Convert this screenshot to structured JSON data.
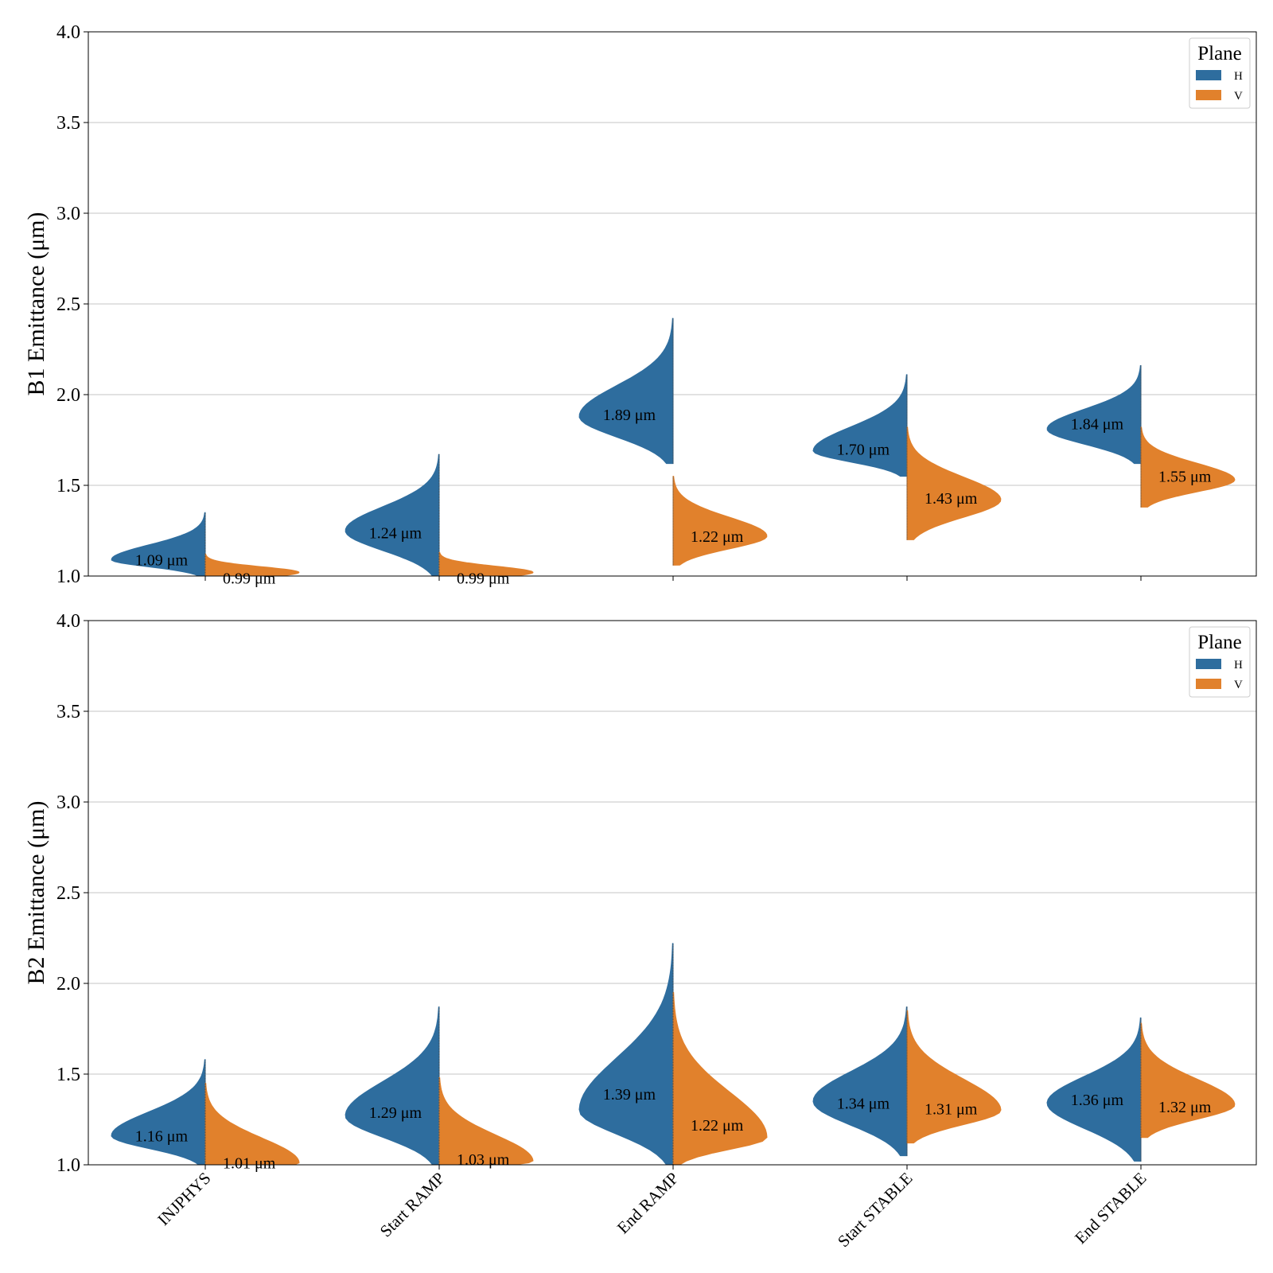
{
  "chart_data": [
    {
      "type": "violin",
      "ylabel": "B1 Emittance (μm)",
      "ylim": [
        1.0,
        4.0
      ],
      "yticks": [
        "1.0",
        "1.5",
        "2.0",
        "2.5",
        "3.0",
        "3.5",
        "4.0"
      ],
      "grid": "horizontal",
      "legend": {
        "title": "Plane",
        "placement": "top-right",
        "entries": [
          "H",
          "V"
        ]
      },
      "categories": [
        "INJPHYS",
        "Start RAMP",
        "End RAMP",
        "Start STABLE",
        "End STABLE"
      ],
      "series": [
        {
          "name": "H",
          "color": "#2e6d9e",
          "annotations": [
            "1.09 μm",
            "1.24 μm",
            "1.89 μm",
            "1.70 μm",
            "1.84 μm"
          ],
          "median": [
            1.09,
            1.24,
            1.89,
            1.7,
            1.84
          ],
          "min": [
            1.0,
            1.0,
            1.62,
            1.55,
            1.62
          ],
          "max": [
            1.35,
            1.67,
            2.42,
            2.11,
            2.16
          ],
          "peak": [
            1.09,
            1.25,
            1.88,
            1.69,
            1.81
          ]
        },
        {
          "name": "V",
          "color": "#e1812c",
          "annotations": [
            "0.99 μm",
            "0.99 μm",
            "1.22 μm",
            "1.43 μm",
            "1.55 μm"
          ],
          "median": [
            0.99,
            0.99,
            1.22,
            1.43,
            1.55
          ],
          "min": [
            1.0,
            1.0,
            1.06,
            1.2,
            1.38
          ],
          "max": [
            1.12,
            1.13,
            1.55,
            1.82,
            1.82
          ],
          "peak": [
            1.02,
            1.02,
            1.22,
            1.42,
            1.53
          ]
        }
      ]
    },
    {
      "type": "violin",
      "ylabel": "B2 Emittance (μm)",
      "ylim": [
        1.0,
        4.0
      ],
      "yticks": [
        "1.0",
        "1.5",
        "2.0",
        "2.5",
        "3.0",
        "3.5",
        "4.0"
      ],
      "grid": "horizontal",
      "legend": {
        "title": "Plane",
        "placement": "top-right",
        "entries": [
          "H",
          "V"
        ]
      },
      "categories": [
        "INJPHYS",
        "Start RAMP",
        "End RAMP",
        "Start STABLE",
        "End STABLE"
      ],
      "series": [
        {
          "name": "H",
          "color": "#2e6d9e",
          "annotations": [
            "1.16 μm",
            "1.29 μm",
            "1.39 μm",
            "1.34 μm",
            "1.36 μm"
          ],
          "median": [
            1.16,
            1.29,
            1.39,
            1.34,
            1.36
          ],
          "min": [
            1.0,
            1.0,
            1.0,
            1.05,
            1.02
          ],
          "max": [
            1.58,
            1.87,
            2.22,
            1.87,
            1.81
          ],
          "peak": [
            1.16,
            1.27,
            1.3,
            1.35,
            1.34
          ]
        },
        {
          "name": "V",
          "color": "#e1812c",
          "annotations": [
            "1.01 μm",
            "1.03 μm",
            "1.22 μm",
            "1.31 μm",
            "1.32 μm"
          ],
          "median": [
            1.01,
            1.03,
            1.22,
            1.31,
            1.32
          ],
          "min": [
            1.0,
            1.0,
            1.0,
            1.12,
            1.15
          ],
          "max": [
            1.45,
            1.48,
            1.95,
            1.85,
            1.78
          ],
          "peak": [
            1.01,
            1.02,
            1.15,
            1.3,
            1.33
          ]
        }
      ]
    }
  ]
}
